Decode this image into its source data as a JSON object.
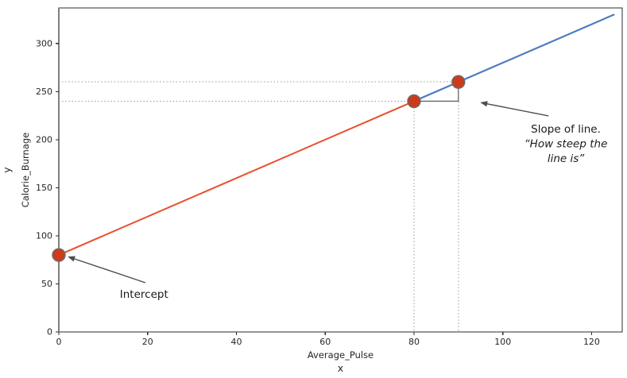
{
  "chart_data": {
    "type": "line",
    "title": "",
    "xlabel": "Average_Pulse",
    "outer_xlabel": "x",
    "ylabel": "Calorie_Burnage",
    "outer_ylabel": "y",
    "equation_depicted": "Calorie_Burnage = 2 * Average_Pulse + 80",
    "xlim": [
      0,
      126.9
    ],
    "ylim": [
      0,
      337
    ],
    "xticks": [
      0,
      20,
      40,
      60,
      80,
      100,
      120
    ],
    "yticks": [
      0,
      50,
      100,
      150,
      200,
      250,
      300
    ],
    "grid": false,
    "legend": null,
    "axis_color": "#2e2e2e",
    "axvline": {
      "x": 0,
      "color": "#7f7f7f",
      "width": 2.2
    },
    "series": [
      {
        "name": "line-left-of-slope-point",
        "color": "#e8502c",
        "width": 2.0,
        "x": [
          0,
          80
        ],
        "y": [
          80,
          240
        ]
      },
      {
        "name": "line-right-of-slope-point",
        "color": "#4c7dbf",
        "width": 2.2,
        "x": [
          80,
          125
        ],
        "y": [
          240,
          330
        ]
      }
    ],
    "points": [
      {
        "x": 0,
        "y": 80
      },
      {
        "x": 80,
        "y": 240
      },
      {
        "x": 90,
        "y": 260
      }
    ],
    "point_style": {
      "fill": "#cc3c1c",
      "edge": "#6b6b6b",
      "edge_width": 1.4,
      "radius": 8
    },
    "guides": {
      "color": "#999999",
      "dash": "1.5,2.6",
      "horizontal": [
        {
          "y": 240,
          "x_end": 80
        },
        {
          "y": 260,
          "x_end": 90
        }
      ],
      "vertical": [
        {
          "x": 80,
          "y_top": 240
        },
        {
          "x": 90,
          "y_top": 260
        }
      ]
    },
    "slope_triangle": {
      "color": "#666666",
      "width": 1.3,
      "path": [
        {
          "x": 80,
          "y": 240
        },
        {
          "x": 90,
          "y": 240
        },
        {
          "x": 90,
          "y": 260
        }
      ]
    },
    "annotations": [
      {
        "name": "intercept",
        "lines": [
          {
            "text": "Intercept",
            "italic": false
          }
        ],
        "font_px": 13.5,
        "center_x": 19.2,
        "first_baseline_y": 35.5,
        "arrow": {
          "from": {
            "x": 19.5,
            "y": 51.2
          },
          "to": {
            "x": 2.0,
            "y": 78.4
          }
        }
      },
      {
        "name": "slope",
        "lines": [
          {
            "text": "Slope of line.",
            "italic": false
          },
          {
            "text": "“How steep the",
            "italic": true
          },
          {
            "text": "line is”",
            "italic": true
          }
        ],
        "font_px": 13.5,
        "center_x": 114.2,
        "first_baseline_y": 207.3,
        "arrow": {
          "from": {
            "x": 110.3,
            "y": 224.7
          },
          "to": {
            "x": 94.9,
            "y": 238.7
          }
        }
      }
    ],
    "annotation_color": "#1a1a1a",
    "arrow_color": "#4d4d4d",
    "tick_font_px": 11,
    "label_font_px": 11.5,
    "outer_label_font_px": 12.5,
    "text_color": "#262626"
  }
}
